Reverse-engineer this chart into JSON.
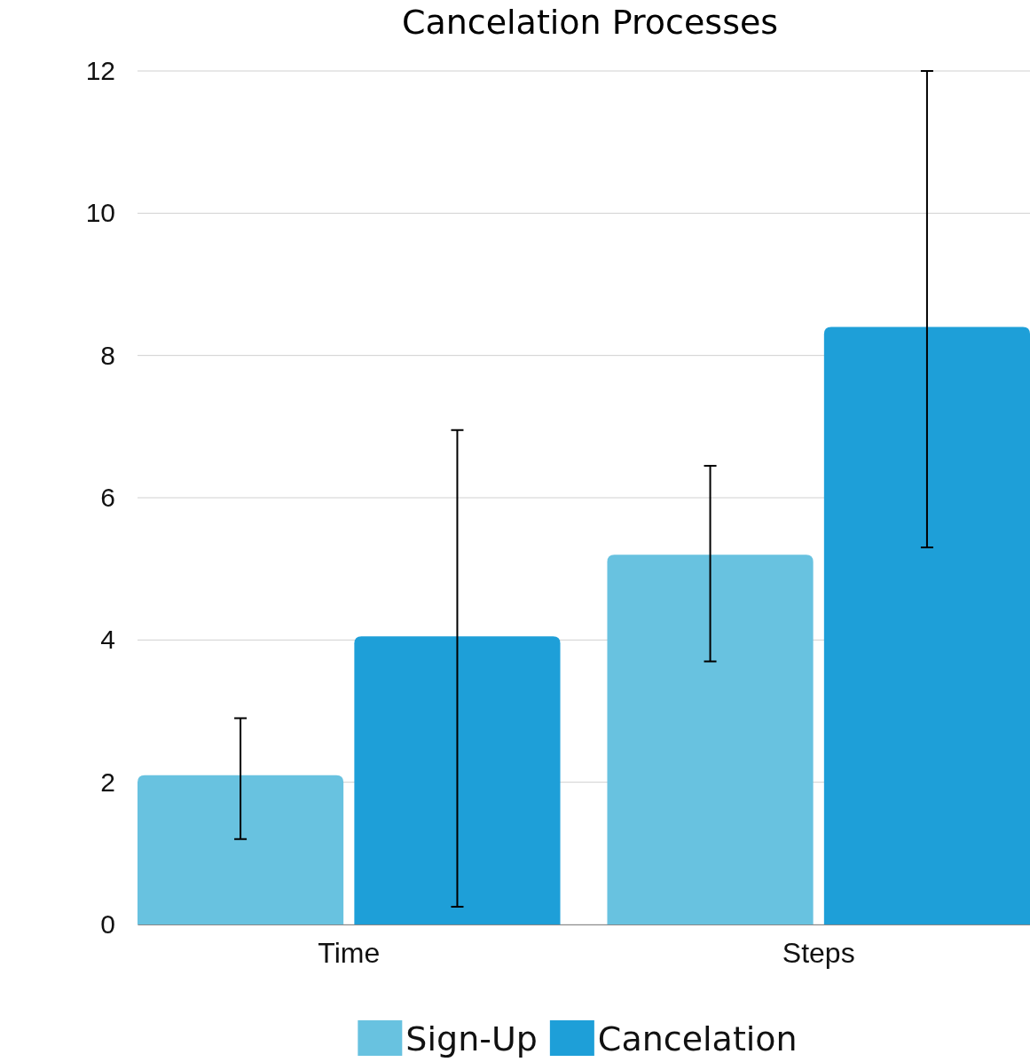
{
  "chart_data": {
    "type": "bar",
    "title": "Cancelation Processes",
    "categories": [
      "Time",
      "Steps"
    ],
    "series": [
      {
        "name": "Sign-Up",
        "color": "#68c2e0",
        "values": [
          2.1,
          5.2
        ],
        "errors": [
          [
            1.2,
            2.9
          ],
          [
            3.7,
            6.45
          ]
        ]
      },
      {
        "name": "Cancelation",
        "color": "#1e9fd8",
        "values": [
          4.05,
          8.4
        ],
        "errors": [
          [
            0.25,
            6.95
          ],
          [
            5.3,
            12
          ]
        ]
      }
    ],
    "ylim": [
      0,
      12
    ],
    "yticks": [
      0,
      2,
      4,
      6,
      8,
      10,
      12
    ],
    "grid": "y",
    "legend": "bottom"
  }
}
